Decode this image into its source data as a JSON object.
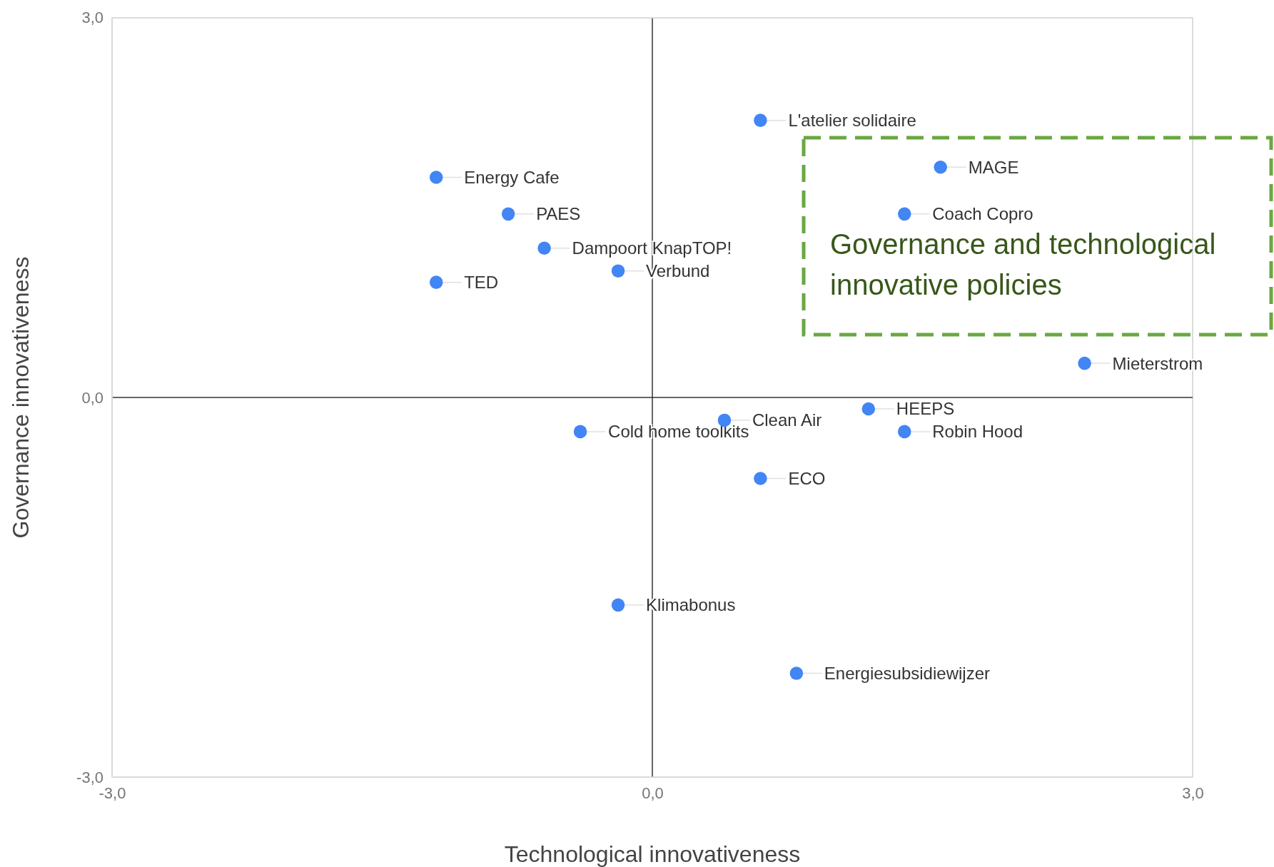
{
  "chart_data": {
    "type": "scatter",
    "xlabel": "Technological innovativeness",
    "ylabel": "Governance innovativeness",
    "xlim": [
      -3,
      3
    ],
    "ylim": [
      -3,
      3
    ],
    "xticks": [
      {
        "value": -3,
        "label": "-3,0"
      },
      {
        "value": 0,
        "label": "0,0"
      },
      {
        "value": 3,
        "label": "3,0"
      }
    ],
    "yticks": [
      {
        "value": -3,
        "label": "-3,0"
      },
      {
        "value": 0,
        "label": "0,0"
      },
      {
        "value": 3,
        "label": "3,0"
      }
    ],
    "grid": true,
    "marker": "circle",
    "series": [
      {
        "color": "#4285f4",
        "x": [
          0.6,
          1.6,
          1.4,
          -1.2,
          -0.8,
          -0.6,
          -0.19,
          -1.2,
          2.4,
          1.2,
          0.4,
          -0.4,
          1.4,
          0.6,
          -0.19,
          0.8
        ],
        "values": [
          2.19,
          1.82,
          1.45,
          1.74,
          1.45,
          1.18,
          1.0,
          0.91,
          0.27,
          -0.09,
          -0.18,
          -0.27,
          -0.27,
          -0.64,
          -1.64,
          -2.18
        ]
      }
    ],
    "annotations": [
      {
        "text": "L'atelier solidaire",
        "x": 0.6,
        "y": 2.19
      },
      {
        "text": "MAGE",
        "x": 1.6,
        "y": 1.82
      },
      {
        "text": "Coach Copro",
        "x": 1.4,
        "y": 1.45
      },
      {
        "text": "Energy Cafe",
        "x": -1.2,
        "y": 1.74
      },
      {
        "text": "PAES",
        "x": -0.8,
        "y": 1.45
      },
      {
        "text": "Dampoort KnapTOP!",
        "x": -0.6,
        "y": 1.18
      },
      {
        "text": "Verbund",
        "x": -0.19,
        "y": 1.0
      },
      {
        "text": "TED",
        "x": -1.2,
        "y": 0.91
      },
      {
        "text": "Mieterstrom",
        "x": 2.4,
        "y": 0.27
      },
      {
        "text": "HEEPS",
        "x": 1.2,
        "y": -0.09
      },
      {
        "text": "Clean Air",
        "x": 0.4,
        "y": -0.18
      },
      {
        "text": "Cold home toolkits",
        "x": -0.4,
        "y": -0.27
      },
      {
        "text": "Robin Hood",
        "x": 1.4,
        "y": -0.27
      },
      {
        "text": "ECO",
        "x": 0.6,
        "y": -0.64
      },
      {
        "text": "Klimabonus",
        "x": -0.19,
        "y": -1.64
      },
      {
        "text": "Energiesubsidiewijzer",
        "x": 0.8,
        "y": -2.18
      },
      "Governance and technological innovative policies"
    ]
  }
}
